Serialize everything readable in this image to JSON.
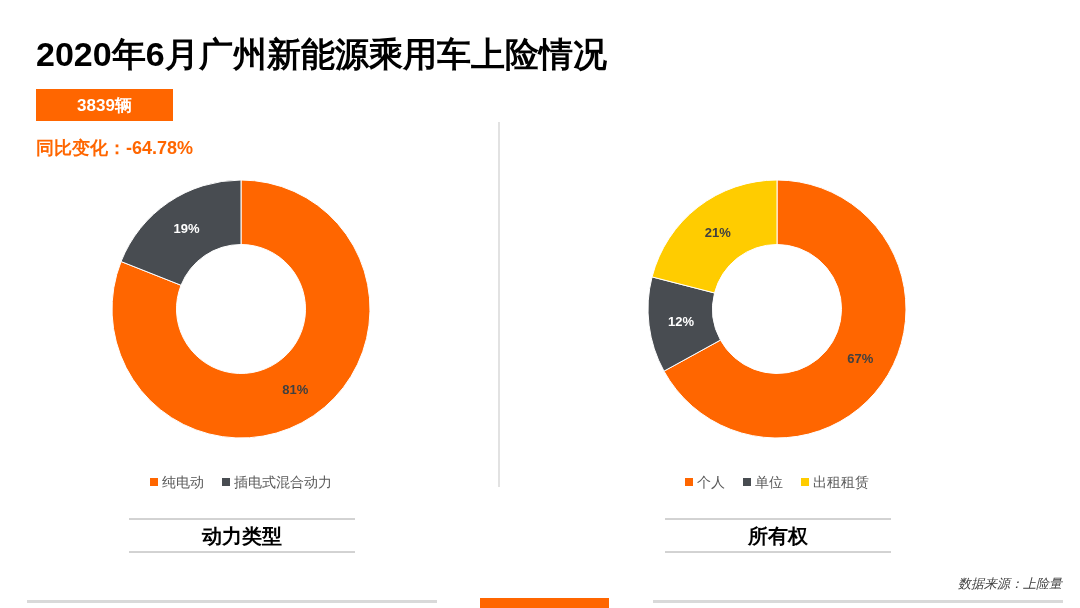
{
  "chart_data": [
    {
      "type": "donut",
      "title": "2020年6月广州新能源乘用车上险情况",
      "annotations": [
        "3839辆",
        "同比变化：-64.78%"
      ],
      "categories": [
        "纯电动",
        "插电式混合动力"
      ],
      "values": [
        81,
        19
      ],
      "colors": [
        "#ff6600",
        "#484c51"
      ],
      "value_labels": [
        "81%",
        "19%"
      ],
      "legend": "bottom",
      "xlabel": "动力类型"
    },
    {
      "type": "donut",
      "categories": [
        "个人",
        "单位",
        "出租租赁"
      ],
      "values": [
        67,
        12,
        21
      ],
      "colors": [
        "#ff6600",
        "#484c51",
        "#ffcc00"
      ],
      "value_labels": [
        "67%",
        "12%",
        "21%"
      ],
      "legend": "bottom",
      "xlabel": "所有权",
      "annotations": [
        "数据来源：上险量"
      ]
    }
  ]
}
